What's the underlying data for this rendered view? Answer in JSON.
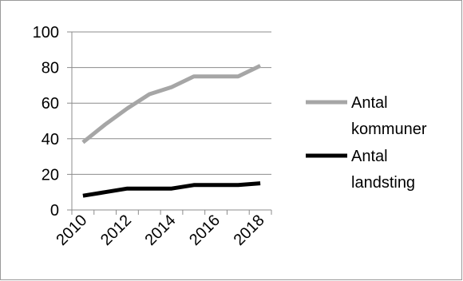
{
  "chart_data": {
    "type": "line",
    "title": "",
    "xlabel": "",
    "ylabel": "",
    "x": [
      2010,
      2011,
      2012,
      2013,
      2014,
      2015,
      2016,
      2017,
      2018
    ],
    "x_tick_labels": [
      "2010",
      "2012",
      "2014",
      "2016",
      "2018"
    ],
    "y_tick_labels": [
      "0",
      "20",
      "40",
      "60",
      "80",
      "100"
    ],
    "ylim": [
      0,
      100
    ],
    "grid": "horizontal",
    "legend_position": "right",
    "series": [
      {
        "name": "Antal kommuner",
        "legend_lines": [
          "Antal",
          "kommuner"
        ],
        "color": "#a6a6a6",
        "values": [
          38,
          48,
          57,
          65,
          69,
          75,
          75,
          75,
          81
        ]
      },
      {
        "name": "Antal landsting",
        "legend_lines": [
          "Antal",
          "landsting"
        ],
        "color": "#000000",
        "values": [
          8,
          10,
          12,
          12,
          12,
          14,
          14,
          14,
          15
        ]
      }
    ]
  }
}
